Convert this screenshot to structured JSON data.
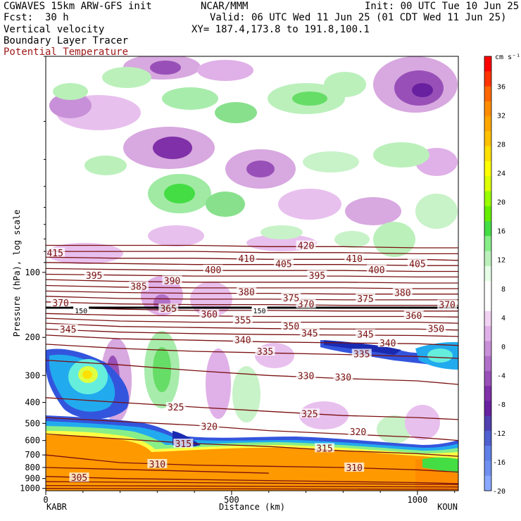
{
  "header": {
    "line1_left": "CGWAVES 15km ARW-GFS init",
    "line1_center": "NCAR/MMM",
    "line1_right": "Init: 00 UTC Tue 10 Jun 25",
    "line2_left_label": "Fcst:",
    "line2_left_value": "30 h",
    "line2_right": "Valid: 06 UTC Wed 11 Jun 25 (01 CDT Wed 11 Jun 25)",
    "line3_left": "Vertical velocity",
    "line3_right": "XY= 187.4,173.8 to 191.8,100.1",
    "line4_left": "Boundary Layer Tracer",
    "line5_left": "Potential Temperature"
  },
  "colors": {
    "theta": "#7a1010",
    "theta_label": "#a01818"
  },
  "chart_data": {
    "type": "heatmap",
    "title": "Vertical velocity / Boundary Layer Tracer / Potential Temperature",
    "xlabel": "Distance (km)",
    "ylabel": "Pressure (hPa), log scale",
    "xlim": [
      0,
      1110
    ],
    "ylim": [
      1025,
      10
    ],
    "x_ticks": [
      0,
      500,
      1000
    ],
    "y_ticks": [
      100,
      200,
      300,
      400,
      500,
      600,
      700,
      800,
      900,
      1000
    ],
    "x_endpoint_labels": {
      "left": "KABR",
      "right": "KOUN"
    },
    "colorbar": {
      "units": "cm s⁻¹",
      "labels": [
        "36",
        "32",
        "28",
        "24",
        "20",
        "16",
        "12",
        "8",
        "4",
        "0",
        "-4",
        "-8",
        "-12",
        "-16",
        "-20"
      ],
      "colors": [
        "#ff0000",
        "#ff3300",
        "#ff6600",
        "#ff8c00",
        "#ffa500",
        "#ffc000",
        "#ffe000",
        "#ffff00",
        "#ddff00",
        "#99ff00",
        "#66ee00",
        "#44dd44",
        "#88ee88",
        "#bbf0bb",
        "#e6ffe6",
        "#ffffff",
        "#ffffff",
        "#f2d2f2",
        "#e0b0e8",
        "#c890d8",
        "#b070c8",
        "#9850b8",
        "#8030a8",
        "#6820a0",
        "#5040b0",
        "#5060d0",
        "#6080e8",
        "#7090f0",
        "#8aa8ff"
      ]
    },
    "theta_contours": [
      {
        "value": 305,
        "label": "305"
      },
      {
        "value": 310,
        "label": "310"
      },
      {
        "value": 315,
        "label": "315"
      },
      {
        "value": 320,
        "label": "320"
      },
      {
        "value": 325,
        "label": "325"
      },
      {
        "value": 330,
        "label": "330"
      },
      {
        "value": 335,
        "label": "335"
      },
      {
        "value": 340,
        "label": "340"
      },
      {
        "value": 345,
        "label": "345"
      },
      {
        "value": 350,
        "label": "350"
      },
      {
        "value": 355,
        "label": "355"
      },
      {
        "value": 360,
        "label": "360"
      },
      {
        "value": 365,
        "label": "365"
      },
      {
        "value": 370,
        "label": "370"
      },
      {
        "value": 375,
        "label": "375"
      },
      {
        "value": 380,
        "label": "380"
      },
      {
        "value": 385,
        "label": "385"
      },
      {
        "value": 390,
        "label": "390"
      },
      {
        "value": 395,
        "label": "395"
      },
      {
        "value": 400,
        "label": "400"
      },
      {
        "value": 405,
        "label": "405"
      },
      {
        "value": 410,
        "label": "410"
      },
      {
        "value": 415,
        "label": "415"
      },
      {
        "value": 420,
        "label": "420"
      }
    ],
    "tracer_labels": [
      "150",
      "150"
    ],
    "grid": false
  }
}
